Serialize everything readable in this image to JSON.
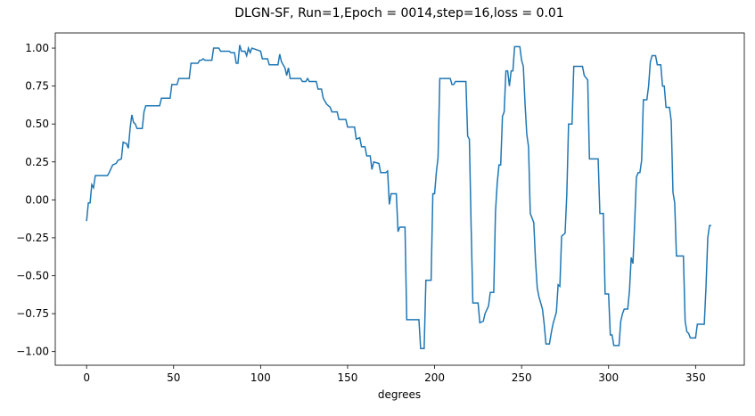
{
  "chart_data": {
    "type": "line",
    "title": "DLGN-SF, Run=1,Epoch = 0014,step=16,loss = 0.01",
    "xlabel": "degrees",
    "color": "#1f77b4",
    "x": [
      0,
      1,
      2,
      3,
      4,
      5,
      12,
      13,
      15,
      17,
      18,
      20,
      21,
      23,
      24,
      25,
      26,
      27,
      28,
      29,
      32,
      33,
      34,
      42,
      43,
      48,
      49,
      52,
      53,
      59,
      60,
      64,
      65,
      66,
      67,
      68,
      72,
      73,
      76,
      77,
      82,
      83,
      85,
      86,
      87,
      88,
      89,
      91,
      92,
      93,
      94,
      95,
      100,
      101,
      104,
      105,
      110,
      111,
      112,
      114,
      115,
      116,
      117,
      123,
      124,
      126,
      127,
      128,
      132,
      133,
      135,
      136,
      137,
      138,
      140,
      141,
      144,
      145,
      149,
      150,
      154,
      155,
      157,
      158,
      160,
      161,
      163,
      164,
      165,
      168,
      169,
      172,
      173,
      174,
      175,
      178,
      179,
      180,
      183,
      184,
      191,
      192,
      194,
      195,
      198,
      199,
      200,
      201,
      202,
      203,
      209,
      210,
      211,
      212,
      218,
      219,
      220,
      221,
      222,
      225,
      226,
      228,
      229,
      231,
      232,
      234,
      235,
      236,
      237,
      238,
      239,
      240,
      241,
      242,
      243,
      244,
      245,
      246,
      249,
      250,
      251,
      252,
      253,
      254,
      255,
      257,
      258,
      259,
      260,
      262,
      263,
      264,
      266,
      267,
      268,
      270,
      271,
      272,
      273,
      275,
      276,
      277,
      279,
      280,
      285,
      286,
      288,
      289,
      294,
      295,
      297,
      298,
      300,
      301,
      302,
      303,
      306,
      307,
      308,
      309,
      311,
      312,
      313,
      314,
      315,
      316,
      317,
      318,
      319,
      320,
      322,
      323,
      324,
      325,
      327,
      328,
      330,
      331,
      332,
      333,
      335,
      336,
      337,
      338,
      339,
      343,
      344,
      345,
      346,
      347,
      350,
      351,
      355,
      356,
      357,
      358,
      359
    ],
    "values": [
      -0.14,
      -0.02,
      -0.02,
      0.1,
      0.08,
      0.16,
      0.16,
      0.18,
      0.23,
      0.24,
      0.26,
      0.27,
      0.38,
      0.37,
      0.34,
      0.47,
      0.56,
      0.51,
      0.5,
      0.47,
      0.47,
      0.58,
      0.62,
      0.62,
      0.67,
      0.67,
      0.76,
      0.76,
      0.8,
      0.8,
      0.9,
      0.9,
      0.92,
      0.92,
      0.93,
      0.92,
      0.92,
      1.0,
      1.0,
      0.98,
      0.98,
      0.97,
      0.97,
      0.9,
      0.9,
      1.02,
      0.98,
      0.98,
      0.95,
      1.0,
      0.97,
      1.0,
      0.98,
      0.93,
      0.93,
      0.89,
      0.89,
      0.96,
      0.91,
      0.87,
      0.82,
      0.87,
      0.8,
      0.8,
      0.78,
      0.78,
      0.8,
      0.78,
      0.78,
      0.73,
      0.73,
      0.67,
      0.65,
      0.63,
      0.61,
      0.58,
      0.58,
      0.53,
      0.53,
      0.48,
      0.48,
      0.4,
      0.41,
      0.35,
      0.35,
      0.29,
      0.29,
      0.2,
      0.25,
      0.24,
      0.18,
      0.18,
      0.19,
      -0.03,
      0.04,
      0.04,
      -0.21,
      -0.18,
      -0.18,
      -0.79,
      -0.79,
      -0.98,
      -0.98,
      -0.53,
      -0.53,
      0.04,
      0.04,
      0.18,
      0.28,
      0.8,
      0.8,
      0.76,
      0.76,
      0.78,
      0.78,
      0.42,
      0.4,
      -0.17,
      -0.68,
      -0.68,
      -0.81,
      -0.8,
      -0.75,
      -0.7,
      -0.61,
      -0.61,
      -0.08,
      0.11,
      0.23,
      0.23,
      0.55,
      0.58,
      0.85,
      0.85,
      0.75,
      0.85,
      0.85,
      1.01,
      1.01,
      0.92,
      0.88,
      0.63,
      0.43,
      0.35,
      -0.09,
      -0.15,
      -0.4,
      -0.58,
      -0.64,
      -0.72,
      -0.82,
      -0.95,
      -0.95,
      -0.88,
      -0.82,
      -0.74,
      -0.56,
      -0.57,
      -0.24,
      -0.22,
      0.04,
      0.5,
      0.5,
      0.88,
      0.88,
      0.82,
      0.79,
      0.27,
      0.27,
      -0.09,
      -0.09,
      -0.62,
      -0.62,
      -0.89,
      -0.89,
      -0.96,
      -0.96,
      -0.8,
      -0.75,
      -0.72,
      -0.72,
      -0.6,
      -0.38,
      -0.42,
      -0.15,
      0.15,
      0.18,
      0.18,
      0.26,
      0.66,
      0.66,
      0.75,
      0.91,
      0.95,
      0.95,
      0.89,
      0.89,
      0.75,
      0.75,
      0.61,
      0.61,
      0.52,
      0.05,
      -0.02,
      -0.37,
      -0.37,
      -0.8,
      -0.87,
      -0.88,
      -0.91,
      -0.91,
      -0.82,
      -0.82,
      -0.57,
      -0.25,
      -0.17,
      -0.17
    ],
    "xlim": [
      -18,
      378
    ],
    "ylim": [
      -1.09,
      1.1
    ],
    "xticks": [
      0,
      50,
      100,
      150,
      200,
      250,
      300,
      350
    ],
    "yticks": [
      {
        "value": -1.0,
        "label": "−1.00"
      },
      {
        "value": -0.75,
        "label": "−0.75"
      },
      {
        "value": -0.5,
        "label": "−0.50"
      },
      {
        "value": -0.25,
        "label": "−0.25"
      },
      {
        "value": 0,
        "label": "0.00"
      },
      {
        "value": 0.25,
        "label": "0.25"
      },
      {
        "value": 0.5,
        "label": "0.50"
      },
      {
        "value": 0.75,
        "label": "0.75"
      },
      {
        "value": 1.0,
        "label": "1.00"
      }
    ]
  }
}
